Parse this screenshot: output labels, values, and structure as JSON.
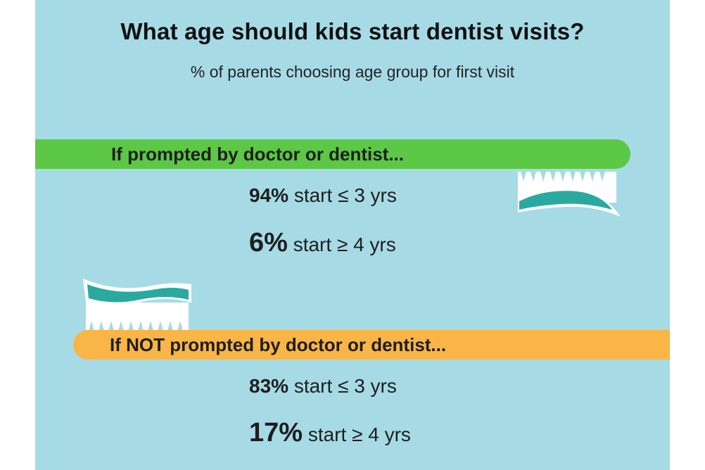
{
  "title": "What age should kids start dentist visits?",
  "subtitle": "% of parents choosing age group for first visit",
  "sections": [
    {
      "label": "If prompted by doctor or dentist...",
      "color": "#5cc846",
      "stats": [
        {
          "percent": "94%",
          "text": "start ≤ 3 yrs"
        },
        {
          "percent": "6%",
          "text": "start ≥ 4 yrs"
        }
      ]
    },
    {
      "label": "If NOT prompted by doctor or dentist...",
      "color": "#f9b545",
      "stats": [
        {
          "percent": "83%",
          "text": "start ≤ 3 yrs"
        },
        {
          "percent": "17%",
          "text": "start ≥ 4 yrs"
        }
      ]
    }
  ],
  "colors": {
    "background": "#a6dbe6",
    "toothpaste": "#2aa9a0",
    "bristles": "#ffffff"
  },
  "icons": [
    "toothbrush-icon",
    "toothbrush-icon"
  ]
}
